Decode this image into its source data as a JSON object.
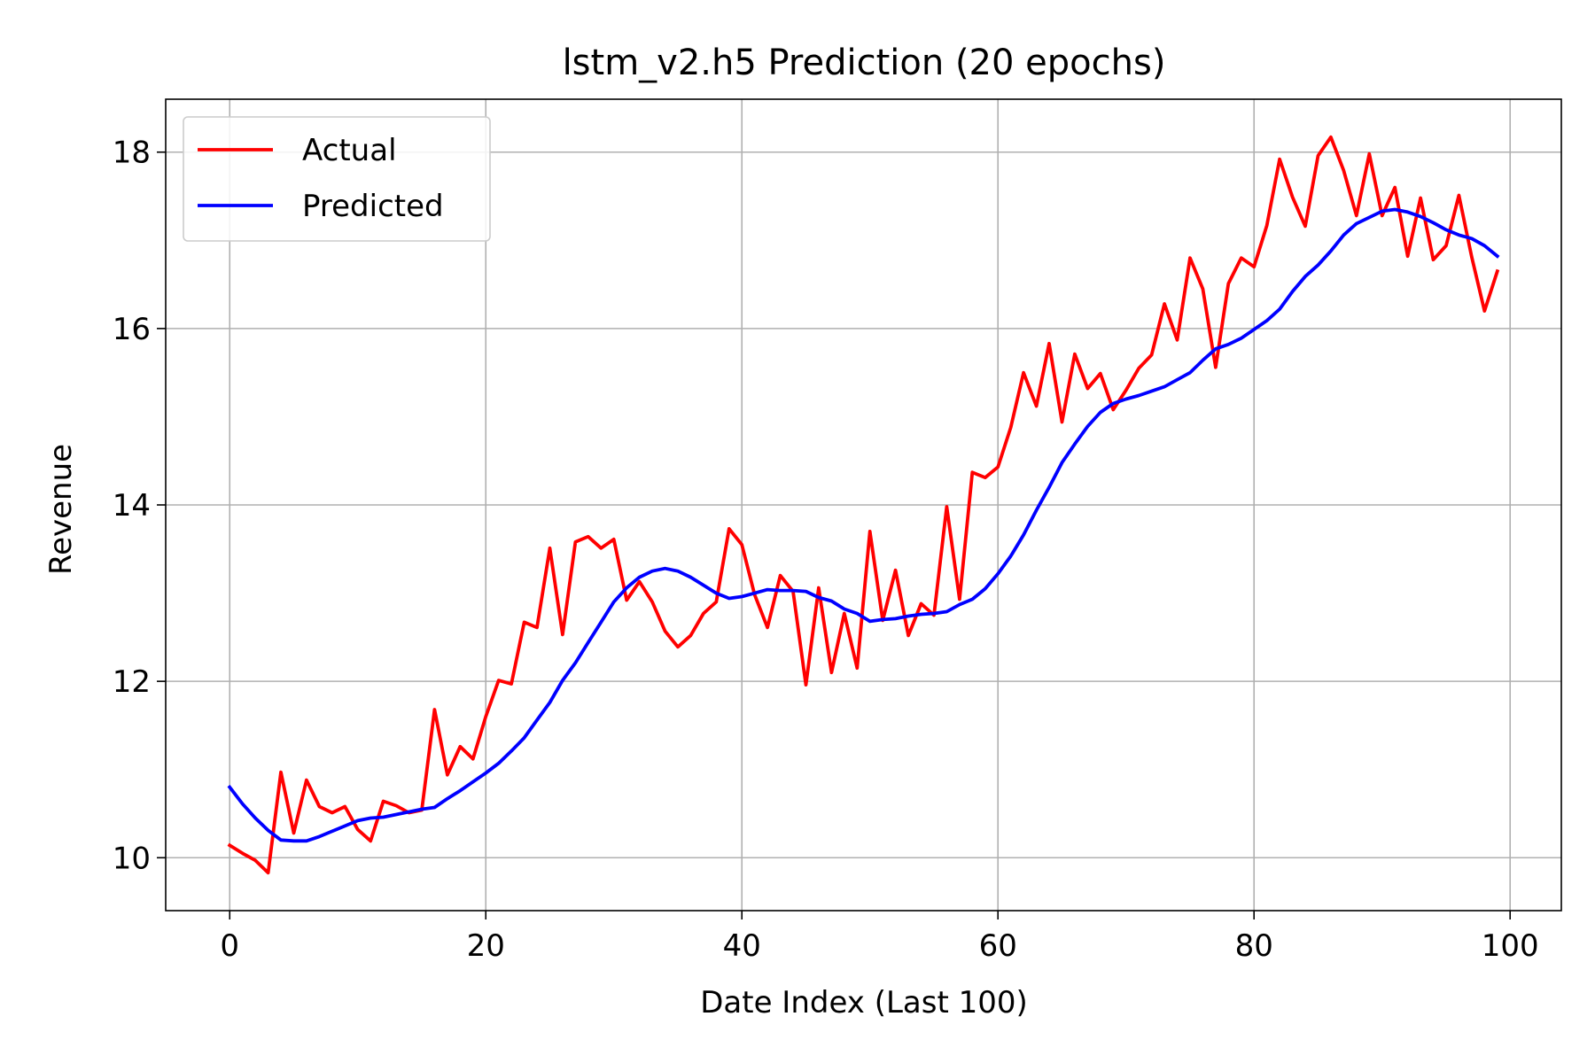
{
  "chart_data": {
    "type": "line",
    "title": "lstm_v2.h5 Prediction (20 epochs)",
    "xlabel": "Date Index (Last 100)",
    "ylabel": "Revenue",
    "xlim": [
      -5,
      104
    ],
    "ylim": [
      9.4,
      18.6
    ],
    "xticks": [
      0,
      20,
      40,
      60,
      80,
      100
    ],
    "yticks": [
      10,
      12,
      14,
      16,
      18
    ],
    "xtick_labels": [
      "0",
      "20",
      "40",
      "60",
      "80",
      "100"
    ],
    "ytick_labels": [
      "10",
      "12",
      "14",
      "16",
      "18"
    ],
    "grid": true,
    "legend_position": "upper-left",
    "series": [
      {
        "name": "Actual",
        "color": "#ff0000",
        "values": [
          10.14,
          10.05,
          9.97,
          9.83,
          10.97,
          10.28,
          10.88,
          10.58,
          10.51,
          10.58,
          10.32,
          10.19,
          10.64,
          10.59,
          10.51,
          10.54,
          11.68,
          10.94,
          11.26,
          11.12,
          11.6,
          12.01,
          11.97,
          12.67,
          12.61,
          13.51,
          12.53,
          13.58,
          13.64,
          13.51,
          13.61,
          12.92,
          13.13,
          12.9,
          12.57,
          12.39,
          12.52,
          12.77,
          12.9,
          13.73,
          13.55,
          12.98,
          12.61,
          13.2,
          13.02,
          11.96,
          13.06,
          12.1,
          12.77,
          12.15,
          13.7,
          12.69,
          13.26,
          12.52,
          12.88,
          12.75,
          13.98,
          12.93,
          14.37,
          14.31,
          14.43,
          14.88,
          15.5,
          15.12,
          15.83,
          14.94,
          15.71,
          15.32,
          15.49,
          15.08,
          15.3,
          15.55,
          15.7,
          16.28,
          15.87,
          16.8,
          16.45,
          15.56,
          16.51,
          16.8,
          16.7,
          17.17,
          17.92,
          17.49,
          17.16,
          17.96,
          18.17,
          17.79,
          17.28,
          17.98,
          17.28,
          17.6,
          16.82,
          17.48,
          16.78,
          16.94,
          17.51,
          16.81,
          16.2,
          16.65
        ]
      },
      {
        "name": "Predicted",
        "color": "#0000ff",
        "values": [
          10.8,
          10.61,
          10.45,
          10.31,
          10.2,
          10.19,
          10.19,
          10.24,
          10.3,
          10.36,
          10.42,
          10.45,
          10.46,
          10.49,
          10.52,
          10.55,
          10.57,
          10.67,
          10.76,
          10.86,
          10.96,
          11.07,
          11.21,
          11.36,
          11.56,
          11.76,
          12.01,
          12.21,
          12.44,
          12.67,
          12.9,
          13.06,
          13.18,
          13.25,
          13.28,
          13.25,
          13.18,
          13.09,
          13.0,
          12.94,
          12.96,
          13.0,
          13.04,
          13.03,
          13.03,
          13.02,
          12.95,
          12.91,
          12.82,
          12.77,
          12.68,
          12.7,
          12.71,
          12.74,
          12.76,
          12.77,
          12.79,
          12.87,
          12.93,
          13.05,
          13.22,
          13.42,
          13.66,
          13.94,
          14.2,
          14.48,
          14.69,
          14.89,
          15.05,
          15.15,
          15.2,
          15.24,
          15.29,
          15.34,
          15.42,
          15.5,
          15.64,
          15.77,
          15.82,
          15.89,
          15.99,
          16.09,
          16.22,
          16.42,
          16.59,
          16.72,
          16.88,
          17.06,
          17.19,
          17.26,
          17.33,
          17.35,
          17.32,
          17.27,
          17.2,
          17.12,
          17.06,
          17.02,
          16.94,
          16.82
        ]
      }
    ]
  }
}
